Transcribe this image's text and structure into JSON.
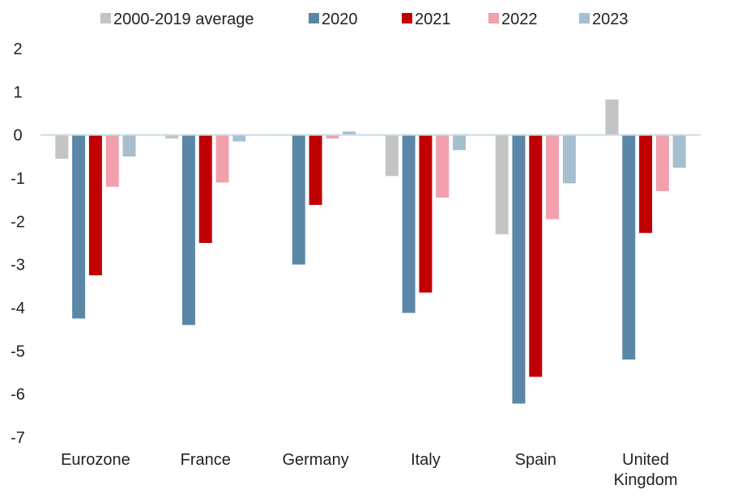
{
  "chart_data": {
    "type": "bar",
    "title": "",
    "xlabel": "",
    "ylabel": "",
    "ylim": [
      -7,
      2
    ],
    "yticks": [
      2,
      1,
      0,
      -1,
      -2,
      -3,
      -4,
      -5,
      -6,
      -7
    ],
    "grid": false,
    "legend_position": "top",
    "categories": [
      "Eurozone",
      "France",
      "Germany",
      "Italy",
      "Spain",
      "United Kingdom"
    ],
    "category_label_lines": [
      [
        "Eurozone"
      ],
      [
        "France"
      ],
      [
        "Germany"
      ],
      [
        "Italy"
      ],
      [
        "Spain"
      ],
      [
        "United",
        "Kingdom"
      ]
    ],
    "series": [
      {
        "name": "2000-2019 average",
        "color": "#c4c4c4",
        "values": [
          -0.55,
          -0.08,
          -0.02,
          -0.95,
          -2.3,
          0.82
        ]
      },
      {
        "name": "2020",
        "color": "#5b87a6",
        "values": [
          -4.25,
          -4.4,
          -3.0,
          -4.12,
          -6.22,
          -5.2
        ]
      },
      {
        "name": "2021",
        "color": "#c00000",
        "values": [
          -3.25,
          -2.5,
          -1.62,
          -3.65,
          -5.6,
          -2.27
        ]
      },
      {
        "name": "2022",
        "color": "#f2a0ac",
        "values": [
          -1.2,
          -1.1,
          -0.08,
          -1.45,
          -1.95,
          -1.3
        ]
      },
      {
        "name": "2023",
        "color": "#a6bfcf",
        "values": [
          -0.5,
          -0.15,
          0.08,
          -0.35,
          -1.12,
          -0.76
        ]
      }
    ],
    "zero_line_color": "#c9dbe6"
  }
}
